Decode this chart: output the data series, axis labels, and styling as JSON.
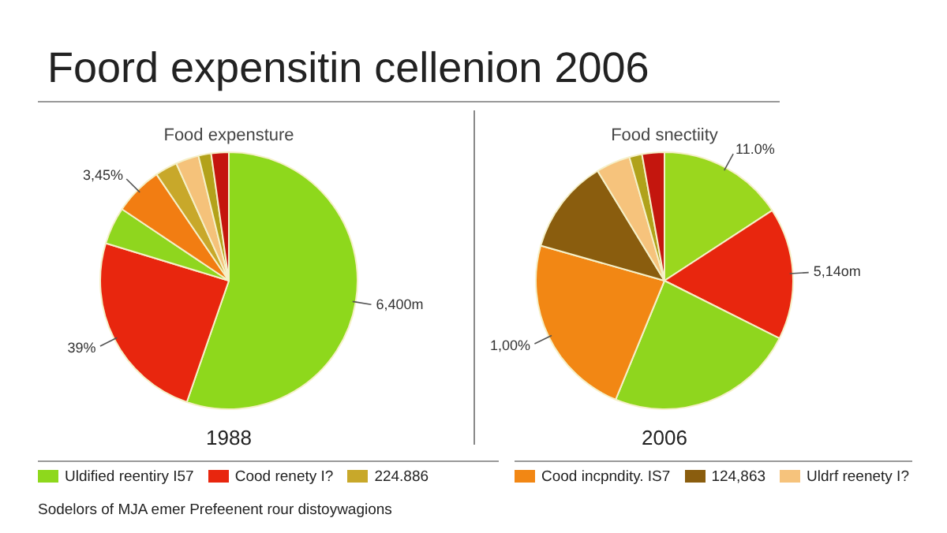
{
  "chart_data": [
    {
      "type": "pie",
      "title": "Foord expensitin cellenion 2006",
      "subtitle": "Food expensture",
      "xlabel": "1988",
      "categories": [
        "Uldified reentiry I57",
        "Cood renety I?",
        null,
        null,
        "224.886",
        null,
        null,
        null
      ],
      "values": [
        55.3,
        24.4,
        4.7,
        6.1,
        2.8,
        2.9,
        1.6,
        2.2
      ],
      "colors": [
        "#8ed81c",
        "#e8260e",
        "#8fd61e",
        "#f27d12",
        "#c8a82a",
        "#f5c27a",
        "#b3a21a",
        "#c4160e"
      ],
      "legend": "bottom",
      "annotations": [
        "3,45%",
        "39%",
        "6,400m",
        "Sodelors of MJA emer Prefeenent rour distoywagions"
      ]
    },
    {
      "type": "pie",
      "subtitle": "Food snectiity",
      "xlabel": "2006",
      "categories": [
        null,
        null,
        null,
        "Cood incpndity. IS7",
        "124,863",
        "Uldrf reenety I?",
        null,
        null
      ],
      "values": [
        15.8,
        16.6,
        23.8,
        23.2,
        11.9,
        4.3,
        1.6,
        2.8
      ],
      "colors": [
        "#9ad71e",
        "#e8260e",
        "#8fd61e",
        "#f28714",
        "#8a5d0e",
        "#f6c37c",
        "#b0a21a",
        "#c4160e"
      ],
      "legend": "bottom",
      "annotations": [
        "11.0%",
        "1,00%",
        "5,14om"
      ]
    }
  ]
}
